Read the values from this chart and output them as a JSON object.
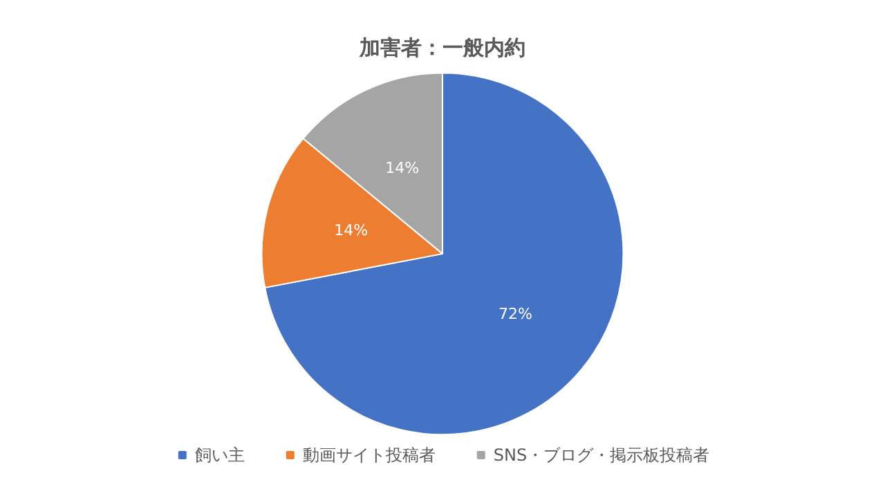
{
  "chart_data": {
    "type": "pie",
    "title": "加害者：一般内約",
    "categories": [
      "飼い主",
      "動画サイト投稿者",
      "SNS・ブログ・掲示板投稿者"
    ],
    "values": [
      72,
      14,
      14
    ],
    "colors": [
      "#4472c4",
      "#ed7d31",
      "#a5a5a5"
    ],
    "value_labels": [
      "72%",
      "14%",
      "14%"
    ],
    "legend": "bottom"
  }
}
